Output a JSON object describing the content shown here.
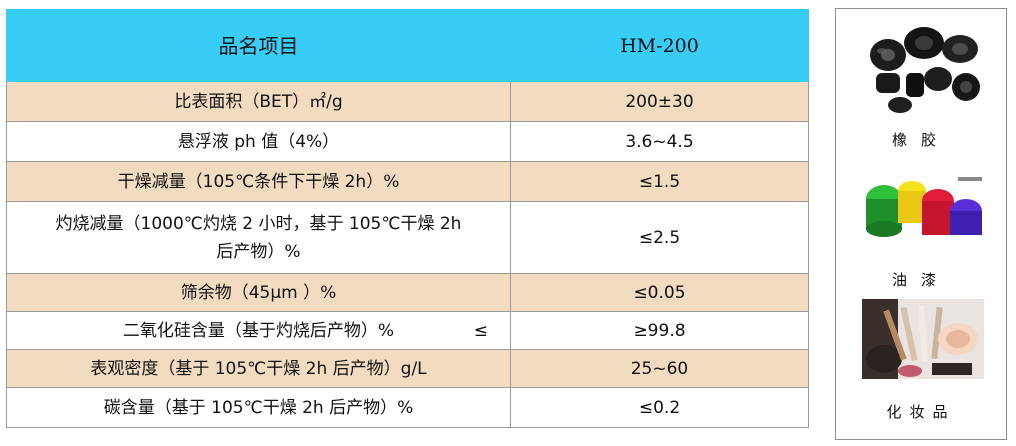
{
  "table": {
    "header": {
      "name": "品名项目",
      "value": "HM-200"
    },
    "rows": [
      {
        "name": "比表面积（BET）㎡/g",
        "value": "200±30"
      },
      {
        "name": "悬浮液 ph 值（4%）",
        "value": "3.6~4.5"
      },
      {
        "name": "干燥减量（105℃条件下干燥 2h）%",
        "value": "≤1.5"
      },
      {
        "name_line1": "灼烧减量（1000℃灼烧 2 小时，基于 105℃干燥 2h",
        "name_line2": "后产物）%",
        "value": "≤2.5"
      },
      {
        "name": "筛余物（45μm ）%",
        "value": "≤0.05"
      },
      {
        "name": "二氧化硅含量（基于灼烧后产物）%",
        "extra": "≤",
        "value": "≥99.8"
      },
      {
        "name": "表观密度（基于 105℃干燥 2h 后产物）g/L",
        "value": "25~60"
      },
      {
        "name": "碳含量（基于 105℃干燥 2h 后产物）%",
        "value": "≤0.2"
      }
    ]
  },
  "applications": [
    {
      "label": "橡胶",
      "icon": "rubber-parts-image"
    },
    {
      "label": "油漆",
      "icon": "paint-cans-image"
    },
    {
      "label": "化妆品",
      "icon": "cosmetics-brushes-image"
    }
  ],
  "colors": {
    "header": "#38cdf7",
    "band": "#f2dcc1",
    "border": "#9a9a9a"
  }
}
